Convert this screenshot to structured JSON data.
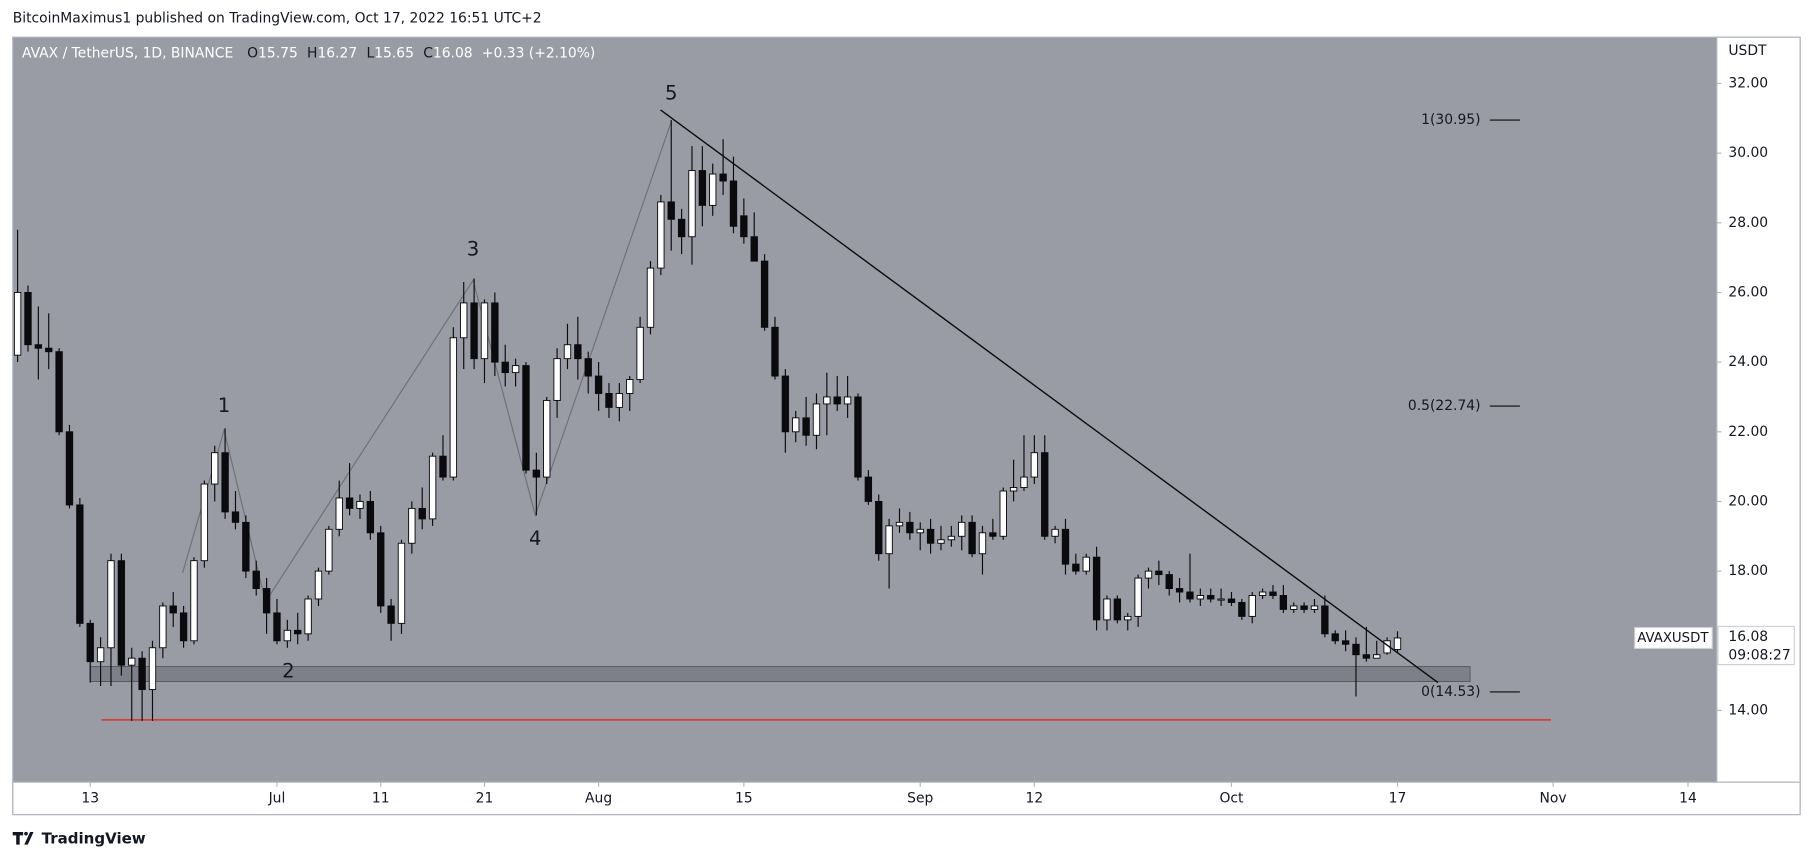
{
  "header": {
    "text": "BitcoinMaximus1 published on TradingView.com, Oct 17, 2022 16:51 UTC+2"
  },
  "footer": {
    "brand": "TradingView"
  },
  "chart_data": {
    "type": "candlestick",
    "symbol": "AVAX / TetherUS, 1D, BINANCE",
    "ohlc_legend": [
      {
        "label": "O",
        "value": 15.75
      },
      {
        "label": "H",
        "value": 16.27
      },
      {
        "label": "L",
        "value": 15.65
      },
      {
        "label": "C",
        "value": 16.08
      }
    ],
    "change": "+0.33 (+2.10%)",
    "y_axis_label": "USDT",
    "colors": {
      "background": "#9a9ca5",
      "up": "#ffffff",
      "down": "#0b0b0e",
      "wick": "#0b0b0e"
    },
    "x": [
      157,
      158,
      159,
      160,
      161,
      162,
      163,
      164,
      165,
      166,
      167,
      168,
      169,
      170,
      171,
      172,
      173,
      174,
      175,
      176,
      177,
      178,
      179,
      180,
      181,
      182,
      183,
      184,
      185,
      186,
      187,
      188,
      189,
      190,
      191,
      192,
      193,
      194,
      195,
      196,
      197,
      198,
      199,
      200,
      201,
      202,
      203,
      204,
      205,
      206,
      207,
      208,
      209,
      210,
      211,
      212,
      213,
      214,
      215,
      216,
      217,
      218,
      219,
      220,
      221,
      222,
      223,
      224,
      225,
      226,
      227,
      228,
      229,
      230,
      231,
      232,
      233,
      234,
      235,
      236,
      237,
      238,
      239,
      240,
      241,
      242,
      243,
      244,
      245,
      246,
      247,
      248,
      249,
      250,
      251,
      252,
      253,
      254,
      255,
      256,
      257,
      258,
      259,
      260,
      261,
      262,
      263,
      264,
      265,
      266,
      267,
      268,
      269,
      270,
      271,
      272,
      273,
      274,
      275,
      276,
      277,
      278,
      279,
      280,
      281,
      282,
      283,
      284,
      285,
      286,
      287,
      288,
      289,
      290
    ],
    "open": [
      24.2,
      26.0,
      24.5,
      24.4,
      24.3,
      22.0,
      19.9,
      16.5,
      15.4,
      15.8,
      18.3,
      15.3,
      15.5,
      14.6,
      15.8,
      17.0,
      16.8,
      16.0,
      18.3,
      20.5,
      21.4,
      19.7,
      19.4,
      18.0,
      17.5,
      16.8,
      16.0,
      16.3,
      16.2,
      17.2,
      18.0,
      19.2,
      20.1,
      19.8,
      20.0,
      19.1,
      17.0,
      16.5,
      18.8,
      19.8,
      19.5,
      21.3,
      20.7,
      24.7,
      25.7,
      24.1,
      25.7,
      24.0,
      23.7,
      23.9,
      20.9,
      20.7,
      22.9,
      24.1,
      24.5,
      24.1,
      23.6,
      23.1,
      22.7,
      23.1,
      23.5,
      25.0,
      26.7,
      28.6,
      28.1,
      27.6,
      29.5,
      28.5,
      29.4,
      29.2,
      28.2,
      27.6,
      26.9,
      25.0,
      23.6,
      22.0,
      22.4,
      21.9,
      22.8,
      23.0,
      22.8,
      23.0,
      20.7,
      20.0,
      18.5,
      19.3,
      19.4,
      19.1,
      19.2,
      18.8,
      18.9,
      19.0,
      19.4,
      18.5,
      19.1,
      19.0,
      20.3,
      20.4,
      20.7,
      21.4,
      19.0,
      19.2,
      18.2,
      18.0,
      18.4,
      16.6,
      17.2,
      16.6,
      16.7,
      17.8,
      18.0,
      17.9,
      17.5,
      17.4,
      17.2,
      17.3,
      17.2,
      17.2,
      17.1,
      16.7,
      17.3,
      17.4,
      17.3,
      16.9,
      17.0,
      16.9,
      17.0,
      16.2,
      16.0,
      15.9,
      15.6,
      15.5,
      15.65,
      15.75
    ],
    "high": [
      27.8,
      26.2,
      25.6,
      25.4,
      24.4,
      22.2,
      20.1,
      16.6,
      16.1,
      18.5,
      18.5,
      15.8,
      15.7,
      16.0,
      17.1,
      17.4,
      17.0,
      18.4,
      20.6,
      21.6,
      22.1,
      20.3,
      19.6,
      18.3,
      17.8,
      17.2,
      16.6,
      16.8,
      17.3,
      18.1,
      19.3,
      20.6,
      21.1,
      20.2,
      20.3,
      19.3,
      17.2,
      18.9,
      20.0,
      20.4,
      21.4,
      21.9,
      25.0,
      26.3,
      26.4,
      25.8,
      26.0,
      24.5,
      24.1,
      24.0,
      21.4,
      23.0,
      24.4,
      25.1,
      25.3,
      24.3,
      24.0,
      23.4,
      23.4,
      23.6,
      25.3,
      26.9,
      28.8,
      30.95,
      28.4,
      30.2,
      30.2,
      29.7,
      30.4,
      29.9,
      28.7,
      28.3,
      27.1,
      25.3,
      23.8,
      22.6,
      23.0,
      23.1,
      23.7,
      23.6,
      23.6,
      23.1,
      20.9,
      20.2,
      19.5,
      19.8,
      19.7,
      19.4,
      19.5,
      19.3,
      19.3,
      19.6,
      19.6,
      19.3,
      19.5,
      20.4,
      21.2,
      21.9,
      21.9,
      21.9,
      19.3,
      19.5,
      18.5,
      18.5,
      18.7,
      17.3,
      17.3,
      16.8,
      17.9,
      18.1,
      18.3,
      18.0,
      17.8,
      18.5,
      17.5,
      17.5,
      17.5,
      17.4,
      17.2,
      17.4,
      17.5,
      17.6,
      17.6,
      17.1,
      17.1,
      17.2,
      17.3,
      16.3,
      16.3,
      16.1,
      16.4,
      16.0,
      16.1,
      16.27
    ],
    "low": [
      24.0,
      24.3,
      23.5,
      23.8,
      21.9,
      19.8,
      16.4,
      14.8,
      14.7,
      14.7,
      15.0,
      13.7,
      13.7,
      13.7,
      15.5,
      16.4,
      15.8,
      15.9,
      18.1,
      20.0,
      19.5,
      19.2,
      17.8,
      17.3,
      16.2,
      15.9,
      15.8,
      15.9,
      16.0,
      17.0,
      17.9,
      19.0,
      19.6,
      19.5,
      18.9,
      16.8,
      16.0,
      16.2,
      18.5,
      19.2,
      19.3,
      20.6,
      20.6,
      23.8,
      23.8,
      23.4,
      23.6,
      23.3,
      23.3,
      20.8,
      19.6,
      20.5,
      22.4,
      23.8,
      23.5,
      23.1,
      22.6,
      22.4,
      22.3,
      22.6,
      23.4,
      24.8,
      26.5,
      27.2,
      27.1,
      26.8,
      27.9,
      28.2,
      28.8,
      27.7,
      27.4,
      26.9,
      24.9,
      23.5,
      21.4,
      21.7,
      21.6,
      21.5,
      21.9,
      22.6,
      22.4,
      20.6,
      19.9,
      18.3,
      17.5,
      19.1,
      18.9,
      18.6,
      18.5,
      18.6,
      18.7,
      18.6,
      18.4,
      17.9,
      18.9,
      18.9,
      20.0,
      20.3,
      20.5,
      18.9,
      18.8,
      17.9,
      17.9,
      17.9,
      16.3,
      16.3,
      16.5,
      16.3,
      16.4,
      17.5,
      17.6,
      17.3,
      17.1,
      17.1,
      17.0,
      17.1,
      17.0,
      17.0,
      16.6,
      16.5,
      17.2,
      17.2,
      16.8,
      16.8,
      16.8,
      16.8,
      16.1,
      15.9,
      15.7,
      14.4,
      15.4,
      15.5,
      15.6,
      15.65
    ],
    "close": [
      26.0,
      24.5,
      24.4,
      24.3,
      22.0,
      19.9,
      16.5,
      15.4,
      15.8,
      18.3,
      15.3,
      15.5,
      14.6,
      15.8,
      17.0,
      16.8,
      16.0,
      18.3,
      20.5,
      21.4,
      19.7,
      19.4,
      18.0,
      17.5,
      16.8,
      16.0,
      16.3,
      16.2,
      17.2,
      18.0,
      19.2,
      20.1,
      19.8,
      20.0,
      19.1,
      17.0,
      16.5,
      18.8,
      19.8,
      19.5,
      21.3,
      20.7,
      24.7,
      25.7,
      24.1,
      25.7,
      24.0,
      23.7,
      23.9,
      20.9,
      20.7,
      22.9,
      24.1,
      24.5,
      24.1,
      23.6,
      23.1,
      22.7,
      23.1,
      23.5,
      25.0,
      26.7,
      28.6,
      28.1,
      27.6,
      29.5,
      28.5,
      29.4,
      29.2,
      27.9,
      27.6,
      26.9,
      25.0,
      23.6,
      22.0,
      22.4,
      21.9,
      22.8,
      23.0,
      22.8,
      23.0,
      20.7,
      20.0,
      18.5,
      19.3,
      19.4,
      19.1,
      19.2,
      18.8,
      18.9,
      19.0,
      19.4,
      18.5,
      19.1,
      19.0,
      20.3,
      20.4,
      20.7,
      21.4,
      19.0,
      19.2,
      18.2,
      18.0,
      18.4,
      16.6,
      17.2,
      16.6,
      16.7,
      17.8,
      18.0,
      17.9,
      17.5,
      17.4,
      17.2,
      17.3,
      17.2,
      17.2,
      17.1,
      16.7,
      17.3,
      17.4,
      17.3,
      16.9,
      17.0,
      16.9,
      17.0,
      16.2,
      16.0,
      15.9,
      15.6,
      15.5,
      15.6,
      16.0,
      16.08
    ],
    "xlim": [
      156.53,
      320.78
    ],
    "ylim": [
      11.94,
      33.33
    ],
    "xticks": [
      {
        "value": 164,
        "label": "13"
      },
      {
        "value": 182,
        "label": "Jul"
      },
      {
        "value": 192,
        "label": "11"
      },
      {
        "value": 202,
        "label": "21"
      },
      {
        "value": 213,
        "label": "Aug"
      },
      {
        "value": 227,
        "label": "15"
      },
      {
        "value": 244,
        "label": "Sep"
      },
      {
        "value": 255,
        "label": "12"
      },
      {
        "value": 274,
        "label": "Oct"
      },
      {
        "value": 290,
        "label": "17"
      },
      {
        "value": 305,
        "label": "Nov"
      },
      {
        "value": 318,
        "label": "14"
      }
    ],
    "yticks": [
      {
        "value": 14,
        "label": "14.00"
      },
      {
        "value": 16,
        "label": "16.00"
      },
      {
        "value": 18,
        "label": "18.00"
      },
      {
        "value": 20,
        "label": "20.00"
      },
      {
        "value": 22,
        "label": "22.00"
      },
      {
        "value": 24,
        "label": "24.00"
      },
      {
        "value": 26,
        "label": "26.00"
      },
      {
        "value": 28,
        "label": "28.00"
      },
      {
        "value": 30,
        "label": "30.00"
      },
      {
        "value": 32,
        "label": "32.00"
      }
    ],
    "grid": false,
    "price_tag": {
      "symbol": "AVAXUSDT",
      "value": 16.08,
      "countdown": "09:08:27"
    },
    "annotations": {
      "wave_labels": [
        {
          "label": "1",
          "x": 176.9,
          "y": 22.73
        },
        {
          "label": "2",
          "x": 183.1,
          "y": 15.1
        },
        {
          "label": "3",
          "x": 200.9,
          "y": 27.22
        },
        {
          "label": "4",
          "x": 206.9,
          "y": 18.91
        },
        {
          "label": "5",
          "x": 220.0,
          "y": 31.7
        }
      ],
      "wave_path": {
        "x": [
          172.9,
          176.9,
          180.9,
          200.9,
          206.9,
          220.0
        ],
        "y": [
          17.95,
          22.04,
          17.12,
          26.35,
          19.61,
          30.9
        ]
      },
      "trendline": {
        "x": [
          218.97,
          293.9
        ],
        "y": [
          31.24,
          14.8
        ]
      },
      "support_zone": {
        "x": [
          164,
          297
        ],
        "y": [
          14.83,
          15.26
        ]
      },
      "support_line": {
        "x": [
          165.1,
          304.8
        ],
        "y": 13.73,
        "color": "#e0302a"
      },
      "fib": {
        "x": [
          298.9,
          301.8
        ],
        "levels": [
          {
            "value": 30.95,
            "label": "1(30.95)"
          },
          {
            "value": 22.74,
            "label": "0.5(22.74)"
          },
          {
            "value": 14.53,
            "label": "0(14.53)"
          }
        ]
      }
    }
  }
}
